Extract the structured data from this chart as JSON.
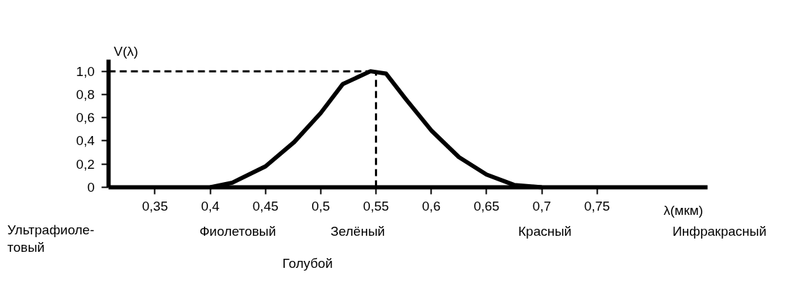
{
  "chart_data": {
    "type": "line",
    "xlabel": "λ(мкм)",
    "ylabel": "V(λ)",
    "x": [
      0.4,
      0.42,
      0.45,
      0.476,
      0.5,
      0.52,
      0.545,
      0.559,
      0.577,
      0.6,
      0.625,
      0.65,
      0.675,
      0.7
    ],
    "series": [
      {
        "color": "#000000",
        "values": [
          0,
          0.04,
          0.18,
          0.39,
          0.64,
          0.89,
          1.0,
          0.98,
          0.76,
          0.49,
          0.26,
          0.11,
          0.02,
          0
        ]
      }
    ],
    "xlim": [
      0.308,
      0.85
    ],
    "ylim": [
      0,
      1.1
    ],
    "xticks": [
      {
        "value": 0.35,
        "label": "0,35"
      },
      {
        "value": 0.4,
        "label": "0,4"
      },
      {
        "value": 0.45,
        "label": "0,45"
      },
      {
        "value": 0.5,
        "label": "0,5"
      },
      {
        "value": 0.55,
        "label": "0,55"
      },
      {
        "value": 0.6,
        "label": "0,6"
      },
      {
        "value": 0.65,
        "label": "0,65"
      },
      {
        "value": 0.7,
        "label": "0,7"
      },
      {
        "value": 0.75,
        "label": "0,75"
      }
    ],
    "yticks": [
      0,
      {
        "value": 0.2,
        "label": "0,2"
      },
      {
        "value": 0.4,
        "label": "0,4"
      },
      {
        "value": 0.6,
        "label": "0,6"
      },
      {
        "value": 0.8,
        "label": "0,8"
      },
      {
        "value": 1.0,
        "label": "1,0"
      }
    ],
    "ref_lines": [
      {
        "axis": "y",
        "value": 1.0,
        "line_style": "dashed"
      },
      {
        "axis": "x",
        "value": 0.55,
        "line_style": "dashed"
      }
    ],
    "annotations": [
      "Ультрафиоле-\nтовый",
      "Фиолетовый",
      "Голубой",
      "Зелёный",
      "Красный",
      "Инфракрасный"
    ],
    "grid": false,
    "marker": "none",
    "line_style": "solid"
  }
}
